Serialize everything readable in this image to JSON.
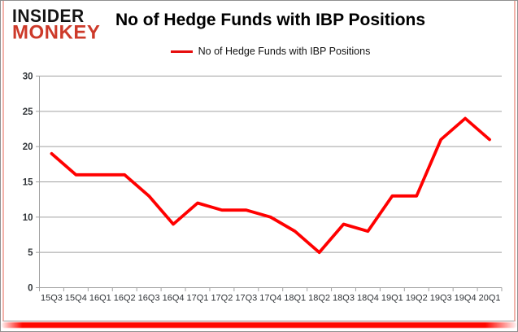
{
  "logo": {
    "line1": "INSIDER",
    "line2": "MONKEY"
  },
  "colors": {
    "line": "#ff0000",
    "grid": "#a1a1a1",
    "axis": "#a1a1a1",
    "tick_label": "#303438",
    "logo_black": "#141414",
    "logo_red": "#cd3a2a",
    "glow_red": "#ff0800"
  },
  "chart_data": {
    "type": "line",
    "title": "No of Hedge Funds with IBP Positions",
    "legend_position": "top",
    "grid": "horizontal",
    "categories": [
      "15Q3",
      "15Q4",
      "16Q1",
      "16Q2",
      "16Q3",
      "16Q4",
      "17Q1",
      "17Q2",
      "17Q3",
      "17Q4",
      "18Q1",
      "18Q2",
      "18Q3",
      "18Q4",
      "19Q1",
      "19Q2",
      "19Q3",
      "19Q4",
      "20Q1"
    ],
    "series": [
      {
        "name": "No of Hedge Funds with IBP Positions",
        "color": "#ff0000",
        "values": [
          19,
          16,
          16,
          16,
          13,
          9,
          12,
          11,
          11,
          10,
          8,
          5,
          9,
          8,
          13,
          13,
          21,
          24,
          21
        ]
      }
    ],
    "ylim": [
      0,
      30
    ],
    "yticks": [
      0,
      5,
      10,
      15,
      20,
      25,
      30
    ],
    "xlabel": "",
    "ylabel": ""
  }
}
